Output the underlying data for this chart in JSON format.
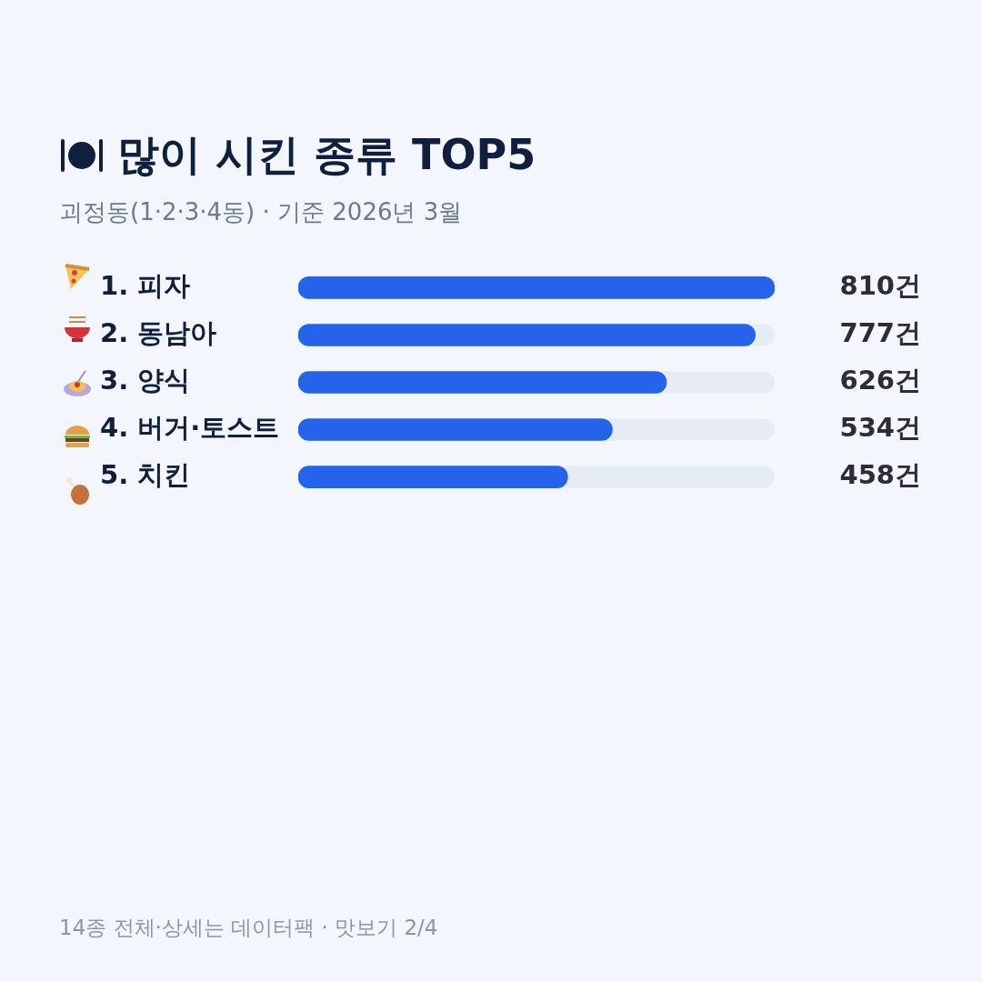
{
  "chart_data": {
    "type": "bar",
    "orientation": "horizontal",
    "title": "많이 시킨 종류 TOP5",
    "subtitle": "괴정동(1·2·3·4동) · 기준 2026년 3월",
    "categories": [
      "1. 피자",
      "2. 동남아",
      "3. 양식",
      "4. 버거·토스트",
      "5. 치킨"
    ],
    "values": [
      810,
      777,
      626,
      534,
      458
    ],
    "value_labels": [
      "810건",
      "777건",
      "626건",
      "534건",
      "458건"
    ],
    "color": "#2563eb",
    "xlim": [
      0,
      810
    ],
    "tick_labels": "y",
    "annotations": [
      "14종 전체·상세는 데이터팩 · 맛보기 2/4"
    ]
  }
}
